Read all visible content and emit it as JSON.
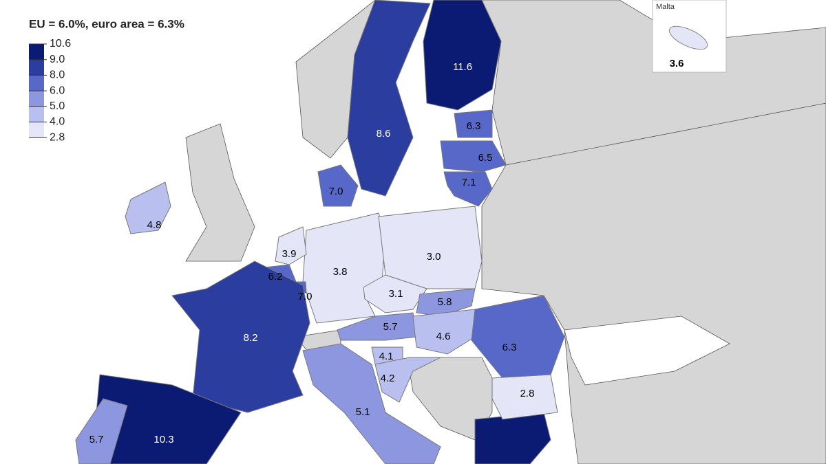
{
  "title": "EU = 6.0%, euro area = 6.3%",
  "legend": {
    "ticks": [
      "10.6",
      "9.0",
      "8.0",
      "6.0",
      "5.0",
      "4.0",
      "2.8"
    ],
    "colors": [
      "#0b1a72",
      "#2b3d9e",
      "#5868c9",
      "#8c97df",
      "#b9bfee",
      "#e4e6f8"
    ]
  },
  "regions": [
    {
      "label": "11.6"
    },
    {
      "label": "8.6"
    },
    {
      "label": "6.3"
    },
    {
      "label": "6.5"
    },
    {
      "label": "7.1"
    },
    {
      "label": "7.0"
    },
    {
      "label": "4.8"
    },
    {
      "label": "3.9"
    },
    {
      "label": "6.2"
    },
    {
      "label": "7.0"
    },
    {
      "label": "3.8"
    },
    {
      "label": "3.0"
    },
    {
      "label": "3.1"
    },
    {
      "label": "5.8"
    },
    {
      "label": "5.7"
    },
    {
      "label": "4.6"
    },
    {
      "label": "6.3"
    },
    {
      "label": "4.1"
    },
    {
      "label": "4.2"
    },
    {
      "label": "2.8"
    },
    {
      "label": "8.2"
    },
    {
      "label": "5.1"
    },
    {
      "label": "10.3"
    },
    {
      "label": "5.7"
    }
  ],
  "inset": {
    "title": "Malta",
    "label": "3.6"
  }
}
